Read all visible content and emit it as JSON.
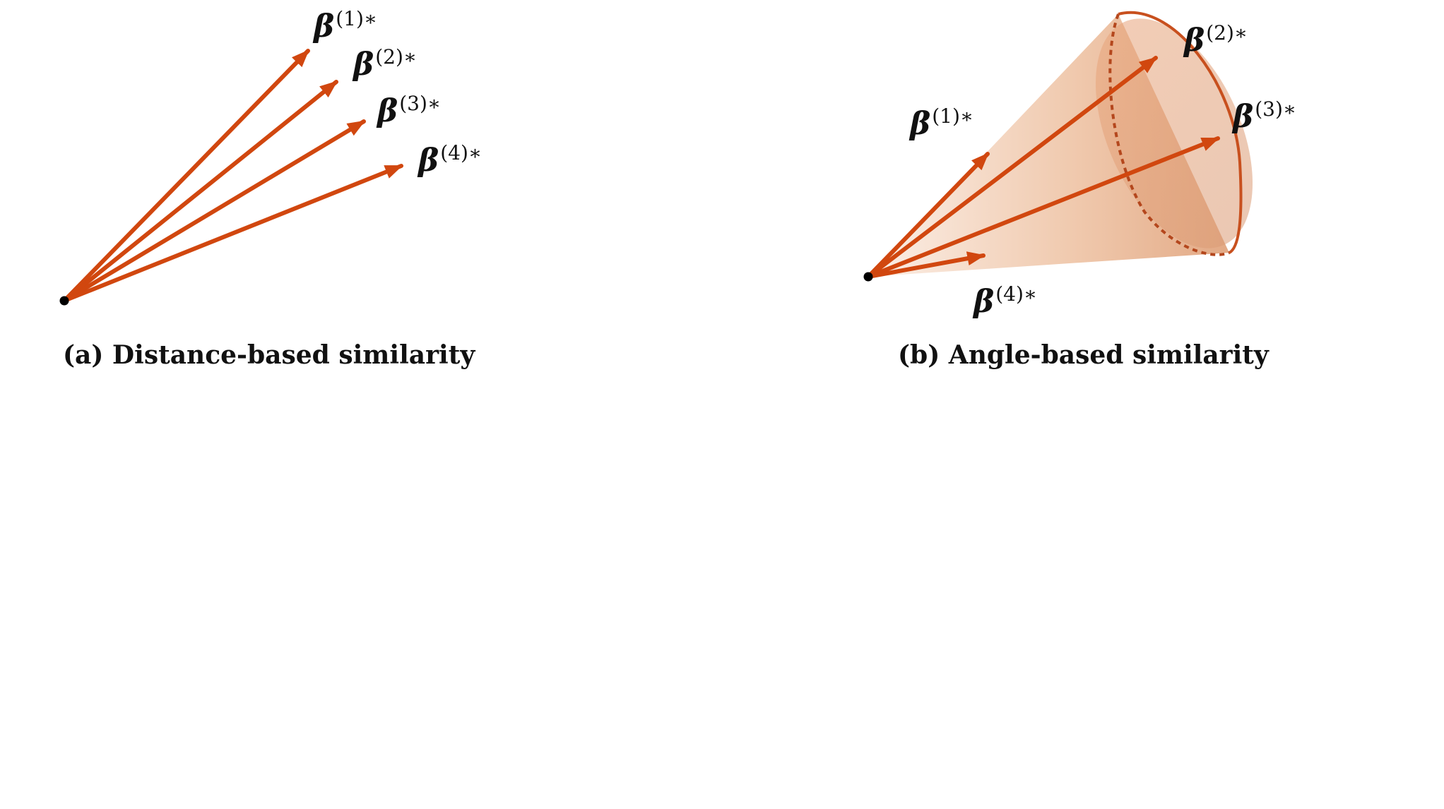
{
  "panels": [
    {
      "id": "a",
      "caption": "(a) Distance-based similarity",
      "vectors": [
        {
          "symbol": "β",
          "superscript": "(1)∗"
        },
        {
          "symbol": "β",
          "superscript": "(2)∗"
        },
        {
          "symbol": "β",
          "superscript": "(3)∗"
        },
        {
          "symbol": "β",
          "superscript": "(4)∗"
        }
      ]
    },
    {
      "id": "b",
      "caption": "(b) Angle-based similarity",
      "vectors": [
        {
          "symbol": "β",
          "superscript": "(1)∗"
        },
        {
          "symbol": "β",
          "superscript": "(2)∗"
        },
        {
          "symbol": "β",
          "superscript": "(3)∗"
        },
        {
          "symbol": "β",
          "superscript": "(4)∗"
        }
      ]
    }
  ],
  "colors": {
    "arrow": "#d1470f",
    "cone_fill_light": "#f6dccb",
    "cone_fill_dark": "#e2a67f",
    "cone_rim": "#c8501e",
    "origin_dot": "#000000"
  }
}
